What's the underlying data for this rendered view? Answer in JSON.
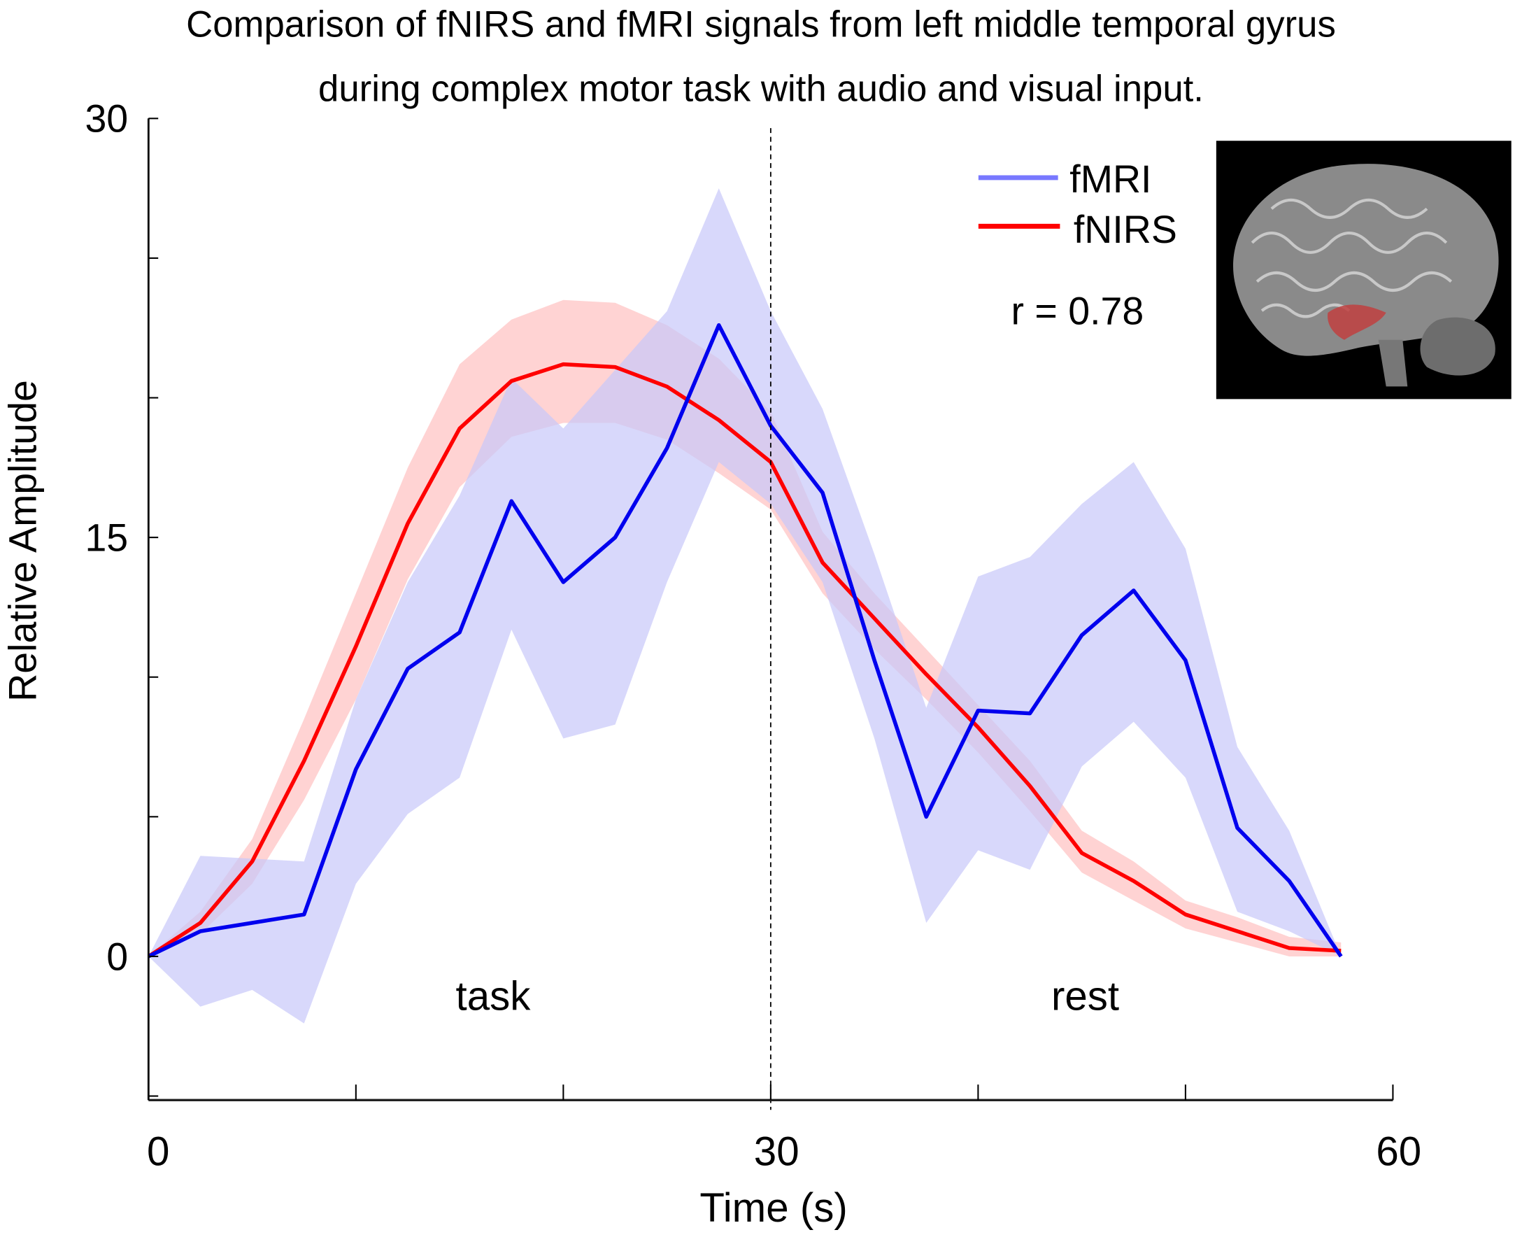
{
  "chart_data": {
    "type": "line",
    "title": [
      "Comparison of fNIRS and fMRI signals from left middle temporal gyrus",
      "during complex motor task with audio and visual input."
    ],
    "xlabel": "Time (s)",
    "ylabel": "Relative Amplitude",
    "xlim": [
      0,
      60
    ],
    "ylim": [
      -5.2,
      30
    ],
    "x_ticks": [
      0,
      10,
      20,
      30,
      40,
      50,
      60
    ],
    "x_tick_labels": [
      "0",
      "30",
      "60"
    ],
    "y_ticks": [
      -5,
      0,
      5,
      10,
      15,
      20,
      25,
      30
    ],
    "y_tick_labels": [
      "0",
      "15",
      "30"
    ],
    "grid": false,
    "legend_position": "top-right",
    "x": [
      0,
      2.5,
      5,
      7.5,
      10,
      12.5,
      15,
      17.5,
      20,
      22.5,
      25,
      27.5,
      30,
      32.5,
      35,
      37.5,
      40,
      42.5,
      45,
      47.5,
      50,
      52.5,
      55,
      57.5
    ],
    "series": [
      {
        "name": "fMRI",
        "color": "#0000ee",
        "band_color": "#c8c8fa",
        "legend_color": "#7878ff",
        "values": [
          0,
          0.9,
          1.2,
          1.5,
          6.7,
          10.3,
          11.6,
          16.3,
          13.4,
          15.0,
          18.2,
          22.6,
          19.0,
          16.6,
          10.6,
          5.0,
          8.8,
          8.7,
          11.5,
          13.1,
          10.6,
          4.6,
          2.7,
          0
        ],
        "upper": [
          0,
          3.6,
          3.5,
          3.4,
          9.2,
          13.4,
          16.5,
          20.7,
          18.9,
          21.0,
          23.1,
          27.5,
          23.1,
          19.6,
          14.4,
          8.9,
          13.6,
          14.3,
          16.2,
          17.7,
          14.6,
          7.5,
          4.5,
          0
        ],
        "lower": [
          0,
          -1.8,
          -1.2,
          -2.4,
          2.6,
          5.1,
          6.4,
          11.7,
          7.8,
          8.3,
          13.4,
          17.7,
          16.2,
          13.4,
          7.8,
          1.2,
          3.8,
          3.1,
          6.8,
          8.4,
          6.4,
          1.6,
          0.9,
          0
        ]
      },
      {
        "name": "fNIRS",
        "color": "#ff0000",
        "band_color": "#ffc4c4",
        "legend_color": "#ff0000",
        "values": [
          0,
          1.2,
          3.4,
          7.0,
          11.1,
          15.5,
          18.9,
          20.6,
          21.2,
          21.1,
          20.4,
          19.2,
          17.7,
          14.1,
          12.1,
          10.1,
          8.2,
          6.1,
          3.7,
          2.7,
          1.5,
          0.9,
          0.3,
          0.2
        ],
        "upper": [
          0,
          1.6,
          4.2,
          8.5,
          13.0,
          17.5,
          21.2,
          22.8,
          23.5,
          23.4,
          22.6,
          21.4,
          19.5,
          15.2,
          13.0,
          11.0,
          9.0,
          7.0,
          4.5,
          3.4,
          2.0,
          1.4,
          0.7,
          0.5
        ],
        "lower": [
          0,
          0.8,
          2.6,
          5.6,
          9.2,
          13.5,
          16.8,
          18.6,
          19.1,
          19.1,
          18.5,
          17.3,
          16.0,
          13.0,
          11.0,
          9.2,
          7.3,
          5.2,
          3.0,
          2.0,
          1.0,
          0.5,
          0.0,
          0.0
        ]
      }
    ],
    "divider_x": 30,
    "annotations": {
      "task": "task",
      "rest": "rest",
      "correlation": "r = 0.78"
    },
    "inset": "brain-lateral-view with highlighted left middle temporal gyrus"
  }
}
